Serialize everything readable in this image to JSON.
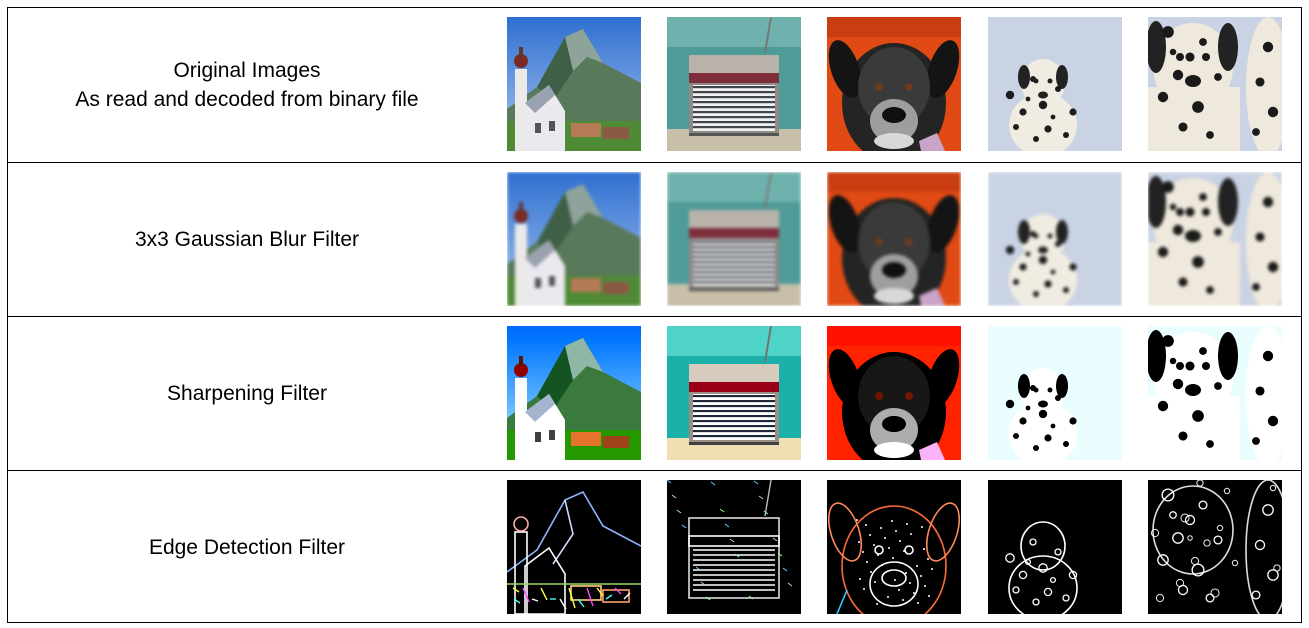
{
  "rows": [
    {
      "label": "Original Images\nAs read and decoded from binary file",
      "variant": "original"
    },
    {
      "label": "3x3 Gaussian Blur Filter",
      "variant": "blur"
    },
    {
      "label": "Sharpening Filter",
      "variant": "sharpen"
    },
    {
      "label": "Edge Detection Filter",
      "variant": "edge"
    }
  ],
  "images": [
    "church-mountain",
    "retro-radio",
    "black-dog",
    "dalmatian-small",
    "dalmatian-close"
  ],
  "colors": {
    "border": "#000000",
    "background": "#ffffff",
    "text": "#000000"
  }
}
